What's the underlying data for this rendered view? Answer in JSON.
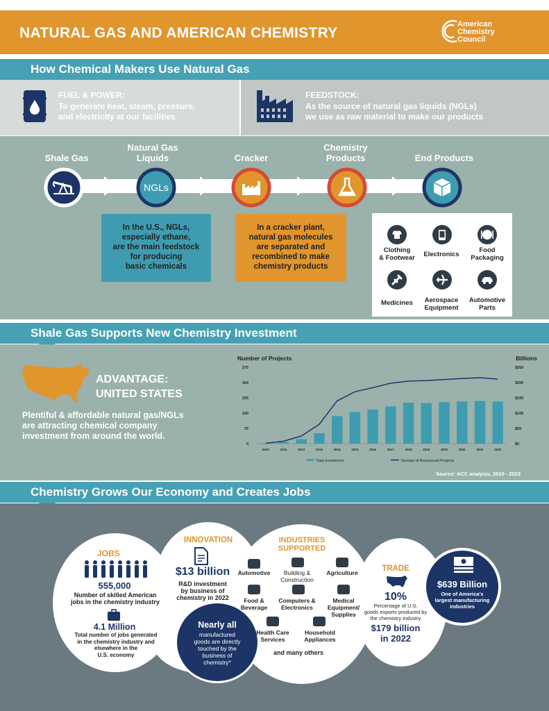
{
  "header": {
    "title": "NATURAL GAS AND AMERICAN CHEMISTRY",
    "logo_lines": [
      "American",
      "Chemistry",
      "Council"
    ]
  },
  "section1": {
    "title": "How Chemical Makers Use Natural Gas",
    "fuel": {
      "heading": "FUEL & POWER:",
      "line1": "To generate heat, steam, pressure,",
      "line2": "and electricity at our facilities",
      "icon": "oil-barrel-icon"
    },
    "feedstock": {
      "heading": "FEEDSTOCK:",
      "line1": "As the source of natural gas liquids (NGLs)",
      "line2": "we use as raw material to make our products",
      "icon": "factory-icon"
    },
    "flow": [
      {
        "label_line1": "Shale Gas",
        "label_line2": "",
        "icon": "pump-jack-icon"
      },
      {
        "label_line1": "Natural Gas",
        "label_line2": "Liquids",
        "icon": "ngls-icon",
        "icon_text": "NGLs"
      },
      {
        "label_line1": "Cracker",
        "label_line2": "",
        "icon": "cracker-plant-icon"
      },
      {
        "label_line1": "Chemistry",
        "label_line2": "Products",
        "icon": "flask-icon"
      },
      {
        "label_line1": "End Products",
        "label_line2": "",
        "icon": "cube-icon"
      }
    ],
    "ngl_note": [
      "In the U.S., NGLs,",
      "especially ethane,",
      "are the main feedstock",
      "for producing",
      "basic chemicals"
    ],
    "cracker_note": [
      "In a cracker plant,",
      "natural gas molecules",
      "are separated and",
      "recombined to make",
      "chemistry products"
    ],
    "end_products": [
      {
        "line1": "Clothing",
        "line2": "& Footwear",
        "icon": "tshirt-icon"
      },
      {
        "line1": "Electronics",
        "line2": "",
        "icon": "phone-icon"
      },
      {
        "line1": "Food",
        "line2": "Packaging",
        "icon": "plate-icon"
      },
      {
        "line1": "Medicines",
        "line2": "",
        "icon": "syringe-icon"
      },
      {
        "line1": "Aerospace",
        "line2": "Equipment",
        "icon": "airplane-icon"
      },
      {
        "line1": "Automotive",
        "line2": "Parts",
        "icon": "car-icon"
      }
    ]
  },
  "section2": {
    "title": "Shale Gas Supports New Chemistry Investment",
    "advantage_line1": "ADVANTAGE:",
    "advantage_line2": "UNITED STATES",
    "body_lines": [
      "Plentiful & affordable natural gas/NGLs",
      "are attracting chemical company",
      "investment from around the world."
    ],
    "source": "Source: ACC analysis, 2010 - 2023"
  },
  "chart_data": {
    "type": "bar",
    "categories": [
      "2010",
      "2011",
      "2012",
      "2013",
      "2014",
      "2015",
      "2016",
      "2017",
      "2018",
      "2019",
      "2020",
      "2021",
      "2022",
      "2023"
    ],
    "series": [
      {
        "name": "Total Investment",
        "type": "bar",
        "axis": "right",
        "values": [
          1,
          5,
          15,
          34,
          90,
          104,
          112,
          122,
          134,
          133,
          136,
          138,
          140,
          138
        ]
      },
      {
        "name": "Number of Announced Projects",
        "type": "line",
        "axis": "left",
        "values": [
          2,
          12,
          38,
          95,
          210,
          255,
          275,
          297,
          307,
          310,
          315,
          320,
          324,
          317
        ]
      }
    ],
    "ylabel_left": "Number of Projects",
    "ylabel_right": "Billions",
    "ylim_left": [
      0,
      375
    ],
    "ylim_right": [
      0,
      250
    ],
    "yticks_left": [
      "0",
      "75",
      "150",
      "225",
      "300",
      "375"
    ],
    "yticks_right": [
      "$0",
      "$50",
      "$100",
      "$150",
      "$200",
      "$250"
    ],
    "legend_position": "bottom"
  },
  "section3": {
    "title": "Chemistry Grows Our Economy and Creates Jobs",
    "jobs": {
      "heading": "JOBS",
      "stat1": "555,000",
      "stat1_desc": [
        "Number of skilled American",
        "jobs in the chemistry industry"
      ],
      "stat2": "4.1 Million",
      "stat2_desc": [
        "Total number of jobs generated",
        "in the chemistry industry and",
        "elsewhere in the",
        "U.S. economy"
      ]
    },
    "innovation": {
      "heading": "INNOVATION",
      "stat": "$13 billion",
      "desc": [
        "R&D investment",
        "by business of",
        "chemistry in 2022"
      ]
    },
    "nearly": {
      "line1": "Nearly all",
      "desc": [
        "manufactured",
        "goods are directly",
        "touched by the",
        "business of",
        "chemistry*"
      ]
    },
    "industries": {
      "heading_line1": "INDUSTRIES",
      "heading_line2": "SUPPORTED",
      "items": [
        {
          "line1": "Automotive",
          "line2": ""
        },
        {
          "line1": "Building &",
          "line2": "Construction"
        },
        {
          "line1": "Agriculture",
          "line2": ""
        },
        {
          "line1": "Food &",
          "line2": "Beverage"
        },
        {
          "line1": "Computers &",
          "line2": "Electronics"
        },
        {
          "line1": "Medical",
          "line2": "Equipment/",
          "line3": "Supplies"
        },
        {
          "line1": "Health Care",
          "line2": "Services"
        },
        {
          "line1": "Household",
          "line2": "Appliances"
        }
      ],
      "footer": "and many others"
    },
    "trade": {
      "heading": "TRADE",
      "stat": "10%",
      "desc": [
        "Percentage of U.S.",
        "goods exports produced by",
        "the chemistry industry"
      ],
      "stat2_line1": "$179 billion",
      "stat2_line2": "in 2022"
    },
    "manufacturing": {
      "stat": "$639 Billion",
      "desc": [
        "One of America's",
        "largest manufacturing",
        "industries"
      ]
    }
  },
  "colors": {
    "orange": "#e1952d",
    "teal": "#46a1b4",
    "navy": "#1d3566",
    "sage": "#9bb1ac",
    "slate": "#6b7a80"
  }
}
